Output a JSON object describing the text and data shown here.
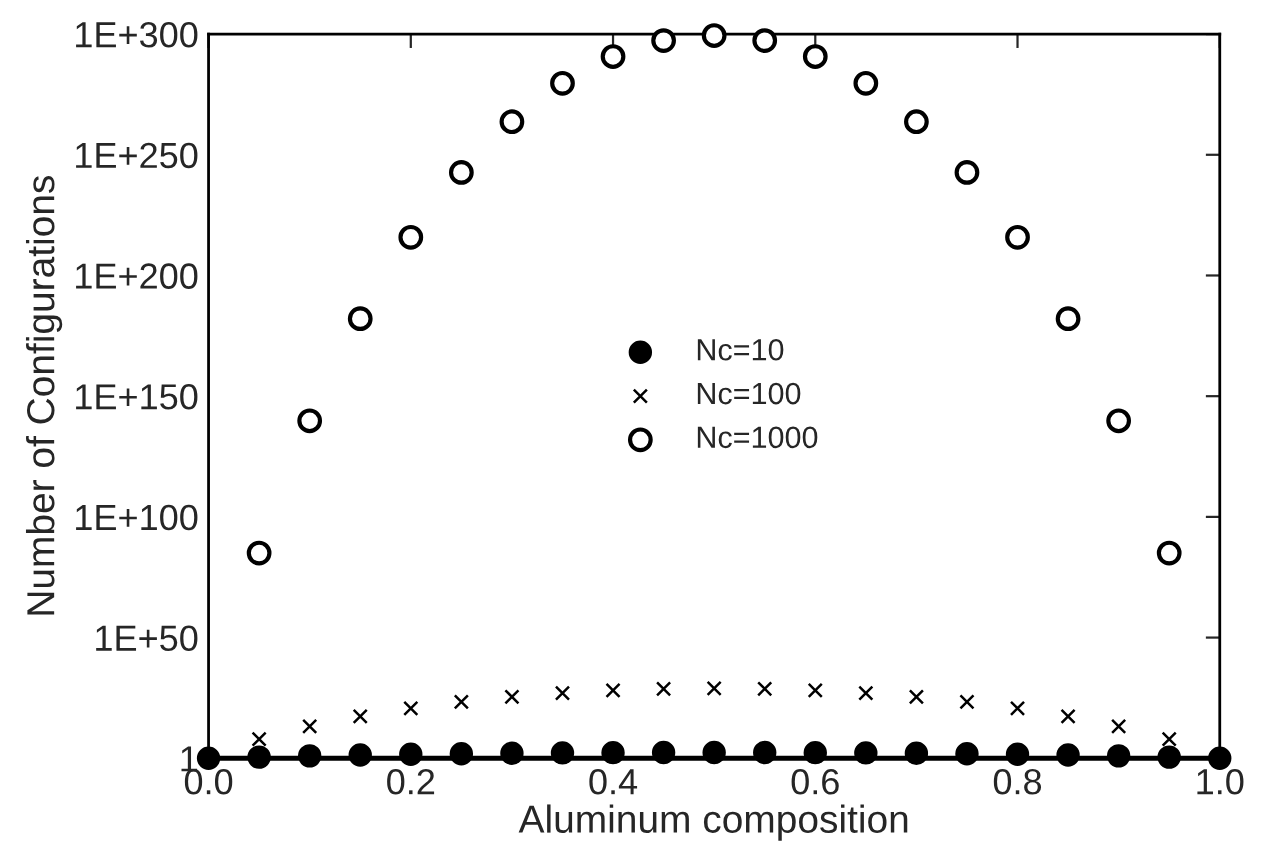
{
  "chart_data": {
    "type": "scatter",
    "xlabel": "Aluminum composition",
    "ylabel": "Number of Configurations",
    "log": "y",
    "xlim": [
      0,
      1
    ],
    "ylim": [
      1,
      1e+300
    ],
    "xticks": [
      {
        "value": 0,
        "label": "0.0"
      },
      {
        "value": 0.2,
        "label": "0.2"
      },
      {
        "value": 0.4,
        "label": "0.4"
      },
      {
        "value": 0.6,
        "label": "0.6"
      },
      {
        "value": 0.8,
        "label": "0.8"
      },
      {
        "value": 1,
        "label": "1.0"
      }
    ],
    "yticks": [
      {
        "value": 1,
        "label": "1"
      },
      {
        "value": 1e+50,
        "label": "1E+50"
      },
      {
        "value": 1e+100,
        "label": "1E+100"
      },
      {
        "value": 1e+150,
        "label": "1E+150"
      },
      {
        "value": 1e+200,
        "label": "1E+200"
      },
      {
        "value": 1e+250,
        "label": "1E+250"
      },
      {
        "value": 1e+300,
        "label": "1E+300"
      }
    ],
    "grid": false,
    "legend": "center",
    "series": [
      {
        "name": "Nc=10",
        "color": "#000000",
        "marker": "circle",
        "x": [
          0,
          0.05,
          0.1,
          0.15,
          0.2,
          0.25,
          0.3,
          0.35,
          0.4,
          0.45,
          0.5,
          0.55,
          0.6,
          0.65,
          0.7,
          0.75,
          0.8,
          0.85,
          0.9,
          0.95,
          1
        ],
        "values": [
          1,
          3,
          10,
          23,
          45,
          77,
          120,
          170,
          210,
          240,
          252,
          240,
          210,
          170,
          120,
          77,
          45,
          23,
          10,
          3,
          1
        ]
      },
      {
        "name": "Nc=100",
        "color": "#000000",
        "marker": "cross",
        "x": [
          0.05,
          0.1,
          0.15,
          0.2,
          0.25,
          0.3,
          0.35,
          0.4,
          0.45,
          0.5,
          0.55,
          0.6,
          0.65,
          0.7,
          0.75,
          0.8,
          0.85,
          0.9,
          0.95
        ],
        "values": [
          80000000.0,
          16000000000000.0,
          2.5e+17,
          5e+20,
          2.5e+23,
          3e+25,
          1e+27,
          1.3e+28,
          6e+28,
          1e+29,
          6e+28,
          1.3e+28,
          1e+27,
          3e+25,
          2.5e+23,
          5e+20,
          2.5e+17,
          16000000000000.0,
          80000000.0
        ]
      },
      {
        "name": "Nc=1000",
        "color": "#000000",
        "marker": "circle",
        "x": [
          0.05,
          0.1,
          0.15,
          0.2,
          0.25,
          0.3,
          0.35,
          0.4,
          0.45,
          0.5,
          0.55,
          0.6,
          0.65,
          0.7,
          0.75,
          0.8,
          0.85,
          0.9,
          0.95
        ],
        "values": [
          1e+85,
          6.3e+139,
          1.3e+182,
          6.3e+215,
          5e+242,
          5e+263,
          4e+279,
          5e+290,
          2e+297,
          2.5e+299,
          2e+297,
          5e+290,
          4e+279,
          5e+263,
          5e+242,
          6.3e+215,
          1.3e+182,
          6.3e+139,
          1e+85
        ]
      }
    ]
  }
}
